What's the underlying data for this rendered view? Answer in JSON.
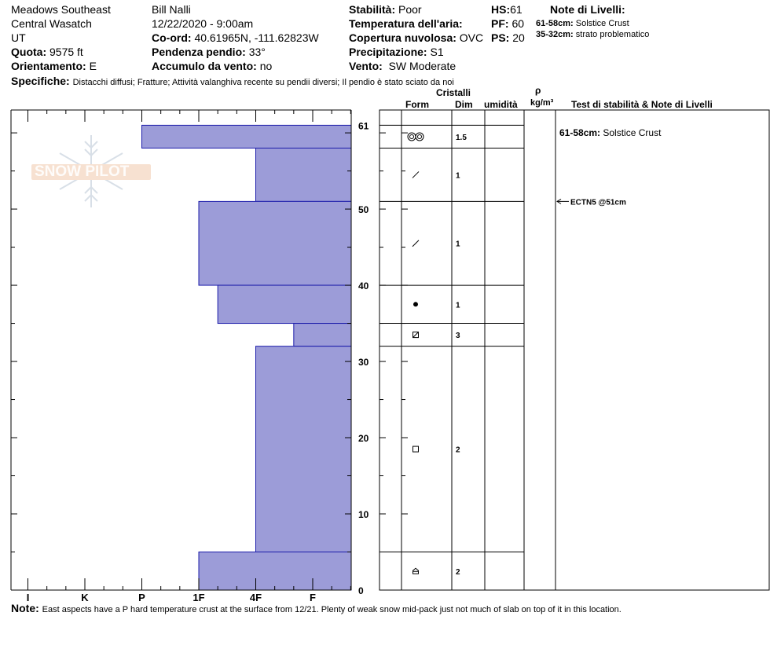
{
  "header": {
    "location": "Meadows Southeast",
    "range": "Central Wasatch",
    "state": "UT",
    "elevation_label": "Quota:",
    "elevation_value": "9575 ft",
    "aspect_label": "Orientamento:",
    "aspect_value": "E",
    "observer": "Bill Nalli",
    "datetime": "12/22/2020 - 9:00am",
    "coord_label": "Co-ord:",
    "coord_value": "40.61965N, -111.62823W",
    "slope_label": "Pendenza pendio:",
    "slope_value": "33°",
    "wind_load_label": "Accumulo da vento:",
    "wind_load_value": "no",
    "stability_label": "Stabilità:",
    "stability_value": "Poor",
    "air_temp_label": "Temperatura dell'aria:",
    "air_temp_value": "",
    "sky_label": "Copertura nuvolosa:",
    "sky_value": "OVC",
    "precip_label": "Precipitazione:",
    "precip_value": "S1",
    "wind_label": "Vento:",
    "wind_value": "SW Moderate",
    "hs_label": "HS:",
    "hs_value": "61",
    "pf_label": "PF:",
    "pf_value": "60",
    "ps_label": "PS:",
    "ps_value": "20",
    "specifics_label": "Specifiche:",
    "specifics_value": "Distacchi diffusi;  Fratture;  Attività valanghiva recente su pendii diversi;  Il pendio è stato sciato da noi"
  },
  "layer_notes": {
    "title": "Note di Livelli:",
    "items": [
      {
        "range": "61-58cm:",
        "text": "Solstice Crust"
      },
      {
        "range": "35-32cm:",
        "text": "strato problematico"
      }
    ]
  },
  "columns": {
    "crystals": "Cristalli",
    "form": "Form",
    "size": "Dim",
    "moisture": "umidità",
    "rho": "ρ",
    "density_unit": "kg/m³",
    "tests": "Test di stabilità & Note di Livelli"
  },
  "logo_text": "SNOW PILOT",
  "footer": {
    "note_label": "Note:",
    "note_value": "East aspects have a P hard temperature crust at the surface from 12/21. Plenty of weak snow mid-pack just not much of slab on top of it in this location."
  },
  "chart_data": {
    "type": "bar",
    "orientation": "horizontal",
    "y_axis": {
      "min": 0,
      "max": 63,
      "ticks": [
        0,
        10,
        20,
        30,
        40,
        50,
        61
      ]
    },
    "x_axis": {
      "categories": [
        "I",
        "K",
        "P",
        "1F",
        "4F",
        "F"
      ],
      "direction": "hardness increases leftward"
    },
    "hardness_layers": [
      {
        "top": 61,
        "bottom": 58,
        "hardness": "P"
      },
      {
        "top": 58,
        "bottom": 51,
        "hardness": "4F"
      },
      {
        "top": 51,
        "bottom": 40,
        "hardness": "1F"
      },
      {
        "top": 40,
        "bottom": 35,
        "hardness": "1F-"
      },
      {
        "top": 35,
        "bottom": 32,
        "hardness": "F+"
      },
      {
        "top": 32,
        "bottom": 5,
        "hardness": "4F"
      },
      {
        "top": 5,
        "bottom": 0,
        "hardness": "1F"
      }
    ],
    "crystal_layers": [
      {
        "top": 61,
        "bottom": 58,
        "form": "melt-forms",
        "size": "1.5"
      },
      {
        "top": 58,
        "bottom": 51,
        "form": "decomposing",
        "size": "1"
      },
      {
        "top": 51,
        "bottom": 40,
        "form": "decomposing",
        "size": "1"
      },
      {
        "top": 40,
        "bottom": 35,
        "form": "rounded",
        "size": "1"
      },
      {
        "top": 35,
        "bottom": 32,
        "form": "mixed-facet",
        "size": "3"
      },
      {
        "top": 32,
        "bottom": 5,
        "form": "faceted",
        "size": "2"
      },
      {
        "top": 5,
        "bottom": 0,
        "form": "depth-hoar",
        "size": "2"
      }
    ],
    "layer_note": {
      "depth": 60,
      "range": "61-58cm:",
      "text": "Solstice Crust"
    },
    "stability_tests": [
      {
        "depth": 51,
        "label": "ECTN5 @51cm"
      }
    ]
  }
}
